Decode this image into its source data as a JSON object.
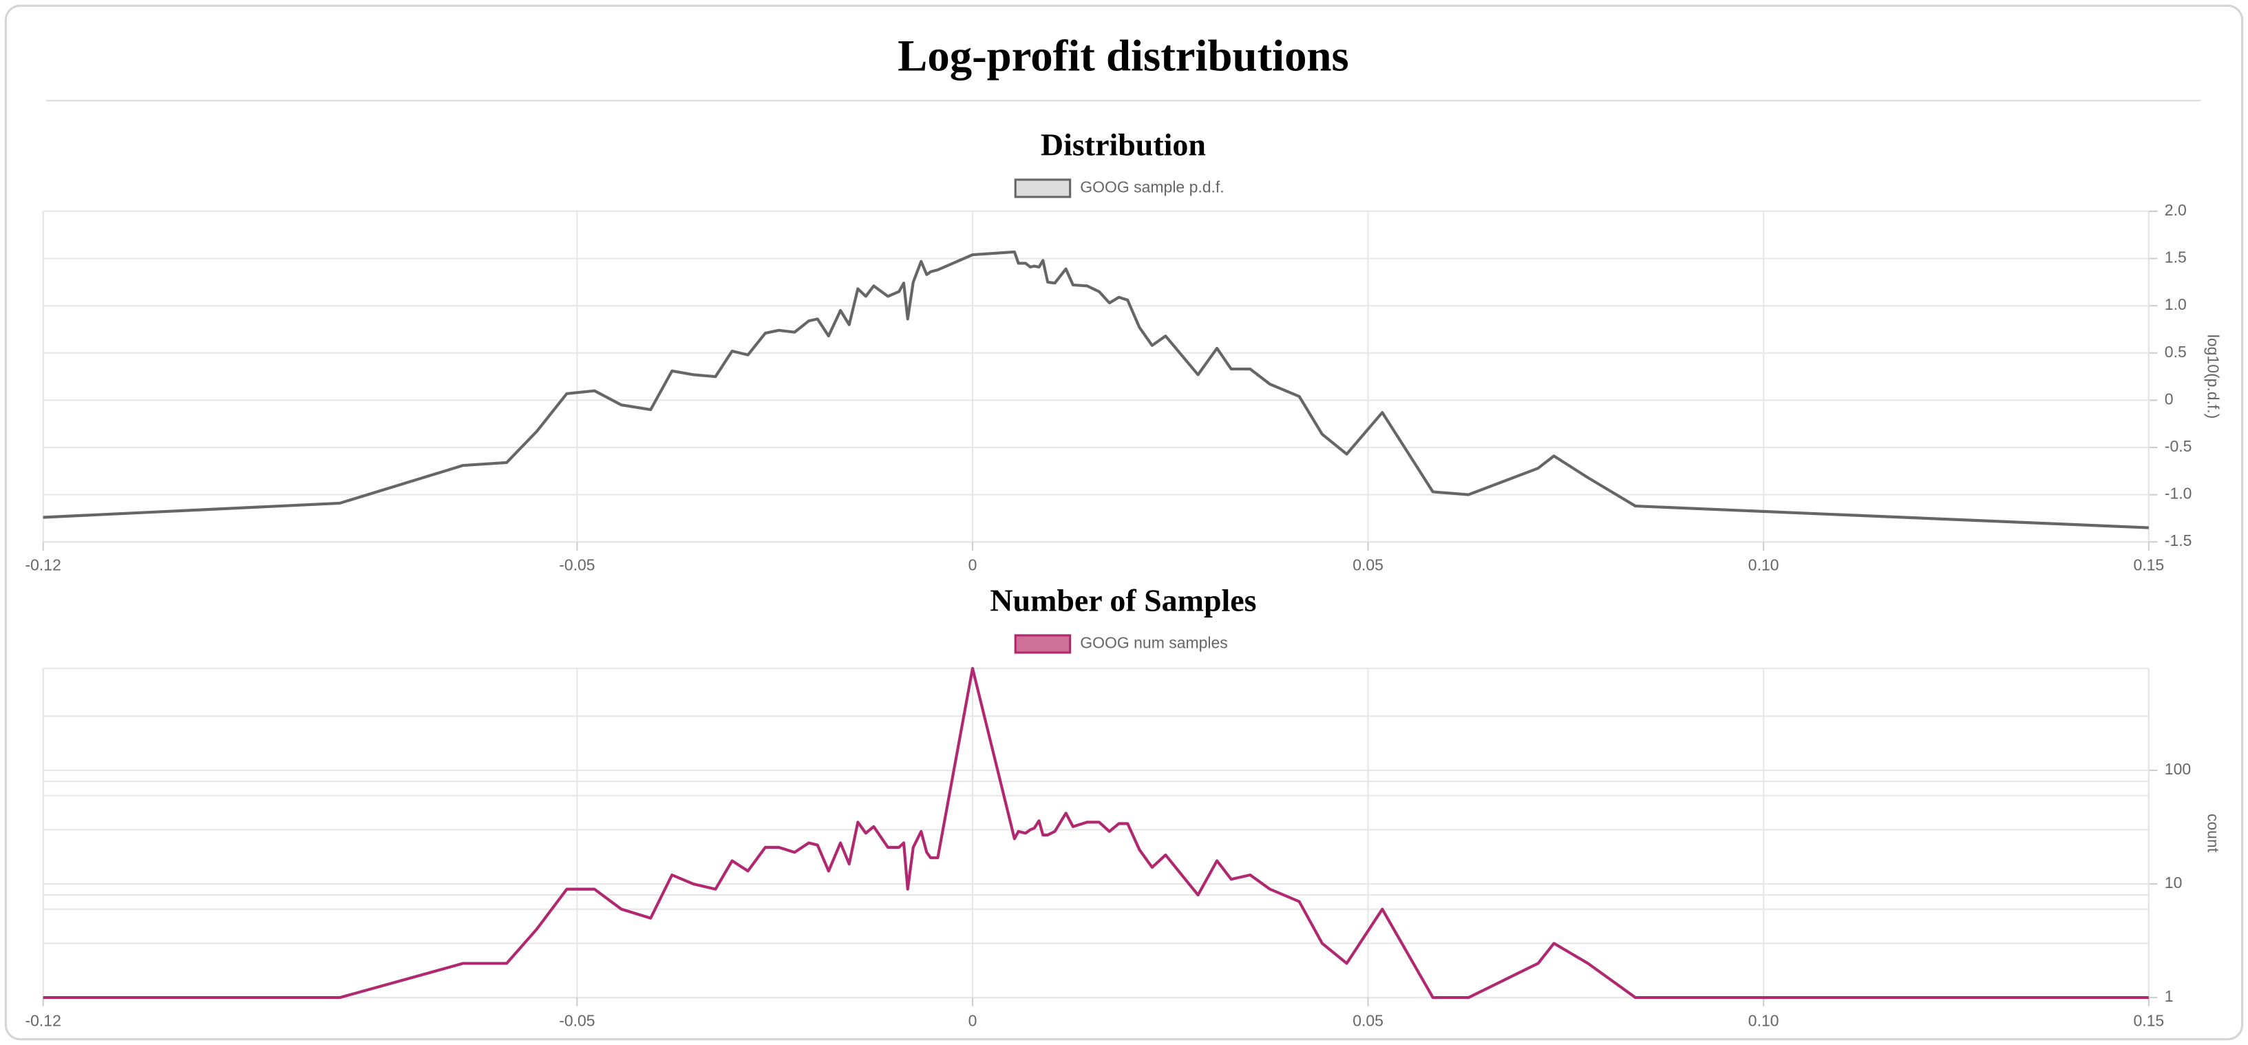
{
  "title": "Log-profit distributions",
  "chart_data": [
    {
      "type": "line",
      "title": "Distribution",
      "x": [
        -0.1175,
        -0.08,
        -0.0644,
        -0.0589,
        -0.0551,
        -0.0513,
        -0.0478,
        -0.0444,
        -0.0407,
        -0.038,
        -0.0353,
        -0.0325,
        -0.0304,
        -0.0284,
        -0.0262,
        -0.0245,
        -0.0225,
        -0.0207,
        -0.0196,
        -0.0182,
        -0.0167,
        -0.0156,
        -0.0145,
        -0.0135,
        -0.0125,
        -0.0107,
        -0.0093,
        -0.0087,
        -0.0082,
        -0.0075,
        -0.0065,
        -0.0058,
        -0.0053,
        -0.0044,
        0,
        0.0053,
        0.0058,
        0.0067,
        0.0073,
        0.0078,
        0.0084,
        0.0089,
        0.0095,
        0.0104,
        0.0118,
        0.0127,
        0.0145,
        0.016,
        0.0173,
        0.0185,
        0.0196,
        0.0211,
        0.0227,
        0.0244,
        0.0285,
        0.0309,
        0.0327,
        0.0351,
        0.0376,
        0.0413,
        0.0442,
        0.0473,
        0.0518,
        0.0582,
        0.0627,
        0.0715,
        0.0735,
        0.0778,
        0.0838,
        0.1487
      ],
      "series": [
        {
          "name": "GOOG sample p.d.f.",
          "color": "#666666",
          "legend_fill": "#dddddd",
          "values": [
            -1.24,
            -1.09,
            -0.69,
            -0.66,
            -0.33,
            0.07,
            0.1,
            -0.05,
            -0.1,
            0.31,
            0.27,
            0.25,
            0.52,
            0.48,
            0.71,
            0.74,
            0.72,
            0.84,
            0.86,
            0.68,
            0.95,
            0.8,
            1.18,
            1.1,
            1.21,
            1.1,
            1.15,
            1.24,
            0.86,
            1.25,
            1.47,
            1.33,
            1.36,
            1.38,
            1.54,
            1.57,
            1.45,
            1.45,
            1.41,
            1.42,
            1.41,
            1.48,
            1.25,
            1.24,
            1.39,
            1.22,
            1.21,
            1.15,
            1.03,
            1.09,
            1.06,
            0.77,
            0.58,
            0.68,
            0.27,
            0.55,
            0.33,
            0.33,
            0.17,
            0.04,
            -0.36,
            -0.57,
            -0.13,
            -0.97,
            -1.0,
            -0.72,
            -0.59,
            -0.82,
            -1.12,
            -1.35
          ]
        }
      ],
      "xlim": [
        -0.1175,
        0.1487
      ],
      "xticks": [
        {
          "value": -0.1175,
          "label": "-0.12"
        },
        -0.05,
        0,
        0.05,
        {
          "value": 0.1,
          "label": "0.10"
        },
        {
          "value": 0.1487,
          "label": "0.15"
        }
      ],
      "ylim": [
        -1.5,
        2
      ],
      "yticks": [
        -1.5,
        {
          "value": -1,
          "label": "-1.0"
        },
        -0.5,
        0,
        0.5,
        {
          "value": 1,
          "label": "1.0"
        },
        1.5,
        {
          "value": 2,
          "label": "2.0"
        }
      ],
      "y_label": "log10(p.d.f.)",
      "y_axis_side": "right",
      "grid": true,
      "legend_position": "top"
    },
    {
      "type": "line",
      "title": "Number of Samples",
      "x": [
        -0.1175,
        -0.08,
        -0.0644,
        -0.0589,
        -0.0551,
        -0.0513,
        -0.0478,
        -0.0444,
        -0.0407,
        -0.038,
        -0.0353,
        -0.0325,
        -0.0304,
        -0.0284,
        -0.0262,
        -0.0245,
        -0.0225,
        -0.0207,
        -0.0196,
        -0.0182,
        -0.0167,
        -0.0156,
        -0.0145,
        -0.0135,
        -0.0125,
        -0.0107,
        -0.0093,
        -0.0087,
        -0.0082,
        -0.0075,
        -0.0065,
        -0.0058,
        -0.0053,
        -0.0044,
        0,
        0.0053,
        0.0058,
        0.0067,
        0.0073,
        0.0078,
        0.0084,
        0.0089,
        0.0095,
        0.0104,
        0.0118,
        0.0127,
        0.0145,
        0.016,
        0.0173,
        0.0185,
        0.0196,
        0.0211,
        0.0227,
        0.0244,
        0.0285,
        0.0309,
        0.0327,
        0.0351,
        0.0376,
        0.0413,
        0.0442,
        0.0473,
        0.0518,
        0.0582,
        0.0627,
        0.0715,
        0.0735,
        0.0778,
        0.0838,
        0.1487
      ],
      "series": [
        {
          "name": "GOOG num samples",
          "color": "#b0286f",
          "legend_fill": "#cf7099",
          "values": [
            1,
            1,
            2,
            2,
            4,
            9,
            9,
            6,
            5,
            12,
            10,
            9,
            16,
            13,
            21,
            21,
            19,
            23,
            22,
            13,
            23,
            15,
            35,
            28,
            32,
            21,
            21,
            23,
            9,
            21,
            29,
            19,
            17,
            17,
            790,
            25,
            29,
            28,
            30,
            31,
            36,
            27,
            27,
            29,
            42,
            32,
            35,
            35,
            29,
            34,
            34,
            20,
            14,
            18,
            8,
            16,
            11,
            12,
            9,
            7,
            3,
            2,
            6,
            1,
            1,
            2,
            3,
            2,
            1,
            1
          ]
        }
      ],
      "xlim": [
        -0.1175,
        0.1487
      ],
      "xticks": [
        {
          "value": -0.1175,
          "label": "-0.12"
        },
        -0.05,
        0,
        0.05,
        {
          "value": 0.1,
          "label": "0.10"
        },
        {
          "value": 0.1487,
          "label": "0.15"
        }
      ],
      "ylim": [
        1,
        790
      ],
      "ylog": true,
      "yticks": [
        1,
        10,
        100
      ],
      "y_minor_gridlines": [
        3,
        6,
        8,
        30,
        60,
        80,
        300
      ],
      "y_label": "count",
      "y_axis_side": "right",
      "grid": true,
      "legend_position": "top"
    }
  ]
}
